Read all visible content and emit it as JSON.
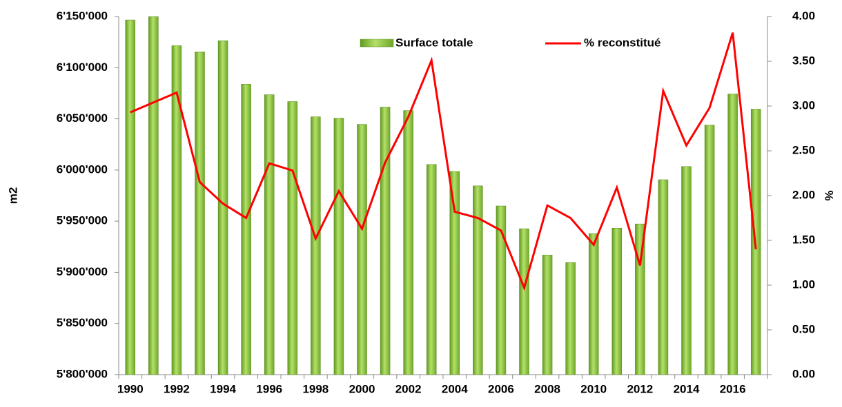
{
  "chart_data": {
    "type": "bar-line",
    "categories": [
      "1990",
      null,
      "1992",
      null,
      "1994",
      null,
      "1996",
      null,
      "1998",
      null,
      "2000",
      null,
      "2002",
      null,
      "2004",
      null,
      "2006",
      null,
      "2008",
      null,
      "2010",
      null,
      "2012",
      null,
      "2014",
      null,
      "2016",
      null
    ],
    "series": [
      {
        "name": "Surface totale",
        "color": "#8cc63f",
        "values": [
          6146600,
          6150000,
          6121600,
          6115500,
          6126400,
          6083800,
          6073600,
          6066900,
          6052000,
          6050700,
          6044600,
          6061500,
          6058100,
          6005400,
          5998600,
          5984500,
          5964900,
          5942600,
          5916900,
          5909500,
          5937800,
          5943200,
          5947300,
          5990500,
          6003400,
          6043900,
          6074300,
          6059500
        ]
      },
      {
        "name": "% reconstitué",
        "color": "#ff0000",
        "axis": "y2",
        "values": [
          2.93,
          3.04,
          3.15,
          2.15,
          1.91,
          1.75,
          2.36,
          2.28,
          1.52,
          2.05,
          1.63,
          2.37,
          2.88,
          3.51,
          1.82,
          1.75,
          1.61,
          0.97,
          1.89,
          1.75,
          1.45,
          2.09,
          1.22,
          3.17,
          2.56,
          2.98,
          3.82,
          1.4
        ]
      }
    ],
    "ylabel": "m2",
    "y2label": "%",
    "ylim": [
      5800000,
      6150000
    ],
    "yticks": [
      {
        "value": 5800000,
        "label": "5'800'000"
      },
      {
        "value": 5850000,
        "label": "5'850'000"
      },
      {
        "value": 5900000,
        "label": "5'900'000"
      },
      {
        "value": 5950000,
        "label": "5'950'000"
      },
      {
        "value": 6000000,
        "label": "6'000'000"
      },
      {
        "value": 6050000,
        "label": "6'050'000"
      },
      {
        "value": 6100000,
        "label": "6'100'000"
      },
      {
        "value": 6150000,
        "label": "6'150'000"
      }
    ],
    "y2lim": [
      0,
      4
    ],
    "y2ticks": [
      {
        "value": 0,
        "label": "0.00"
      },
      {
        "value": 0.5,
        "label": "0.50"
      },
      {
        "value": 1,
        "label": "1.00"
      },
      {
        "value": 1.5,
        "label": "1.50"
      },
      {
        "value": 2,
        "label": "2.00"
      },
      {
        "value": 2.5,
        "label": "2.50"
      },
      {
        "value": 3,
        "label": "3.00"
      },
      {
        "value": 3.5,
        "label": "3.50"
      },
      {
        "value": 4,
        "label": "4.00"
      }
    ],
    "legend": "top"
  }
}
